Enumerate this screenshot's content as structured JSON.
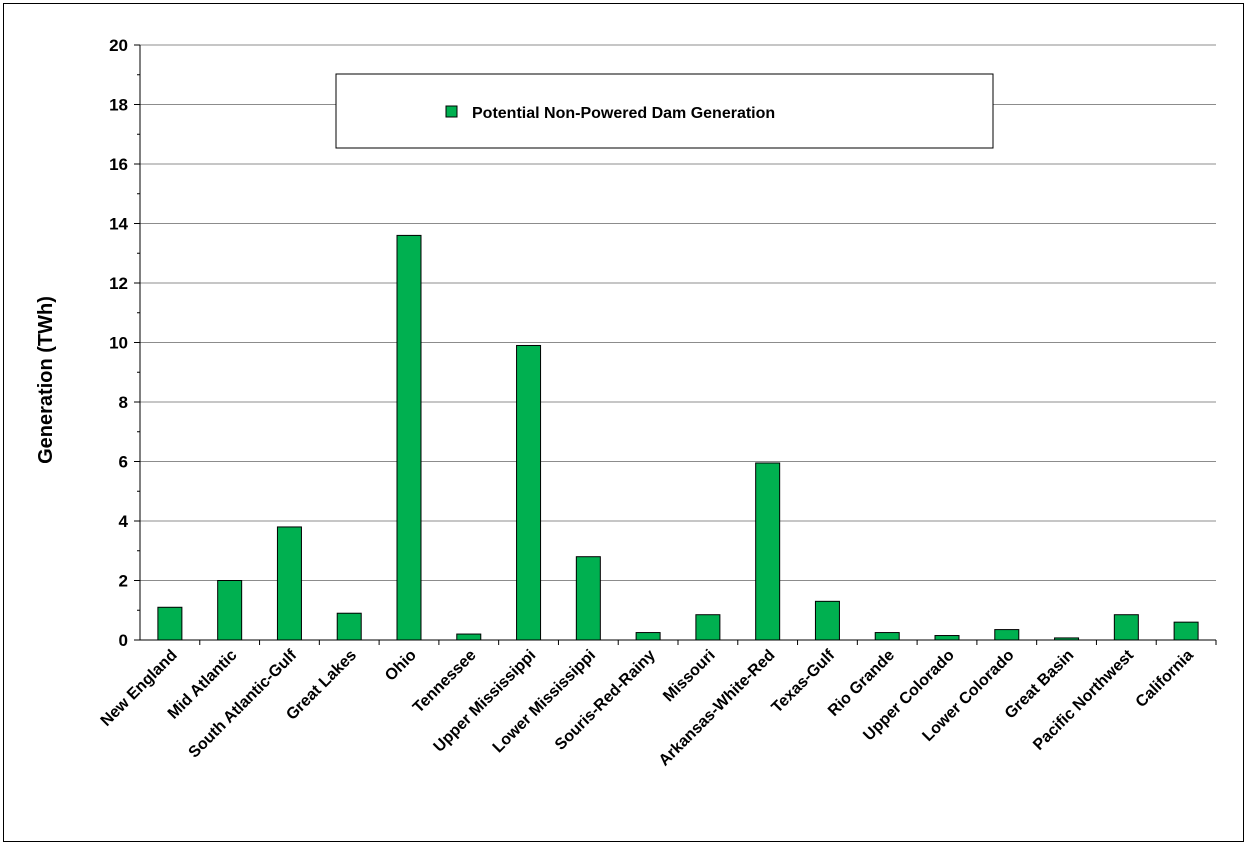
{
  "chart_data": {
    "type": "bar",
    "title": "",
    "xlabel": "",
    "ylabel": "Generation (TWh)",
    "ylim": [
      0,
      20
    ],
    "yticks": [
      0,
      2,
      4,
      6,
      8,
      10,
      12,
      14,
      16,
      18,
      20
    ],
    "grid": true,
    "legend_position": "top-center",
    "categories": [
      "New England",
      "Mid Atlantic",
      "South Atlantic-Gulf",
      "Great Lakes",
      "Ohio",
      "Tennessee",
      "Upper Mississippi",
      "Lower Mississippi",
      "Souris-Red-Rainy",
      "Missouri",
      "Arkansas-White-Red",
      "Texas-Gulf",
      "Rio Grande",
      "Upper Colorado",
      "Lower Colorado",
      "Great Basin",
      "Pacific Northwest",
      "California"
    ],
    "series": [
      {
        "name": "Potential Non-Powered Dam Generation",
        "color": "#00b050",
        "values": [
          1.1,
          2.0,
          3.8,
          0.9,
          13.6,
          0.2,
          9.9,
          2.8,
          0.25,
          0.85,
          5.95,
          1.3,
          0.25,
          0.15,
          0.35,
          0.07,
          0.85,
          0.6
        ]
      }
    ]
  }
}
